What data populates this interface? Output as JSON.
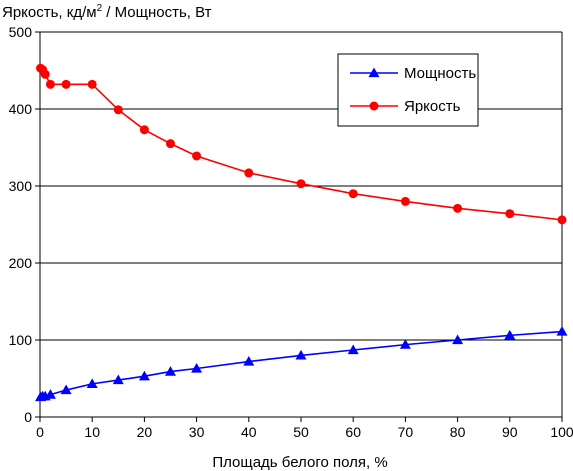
{
  "chart_data": {
    "type": "line",
    "title": "",
    "ylabel_main": "Яркость, кд/м",
    "ylabel_sup": "2",
    "ylabel_tail": " / Мощность, Вт",
    "xlabel": "Площадь белого поля, %",
    "xlim": [
      0,
      100
    ],
    "ylim": [
      0,
      500
    ],
    "xticks": [
      0,
      10,
      20,
      30,
      40,
      50,
      60,
      70,
      80,
      90,
      100
    ],
    "yticks": [
      0,
      100,
      200,
      300,
      400,
      500
    ],
    "grid": "horizontal",
    "legend_position": "top-right",
    "series": [
      {
        "name": "Мощность",
        "color": "#0000ff",
        "marker": "triangle",
        "x": [
          0.1,
          0.5,
          1,
          2,
          5,
          10,
          15,
          20,
          25,
          30,
          40,
          50,
          60,
          70,
          80,
          90,
          100
        ],
        "y": [
          26,
          27,
          27,
          29,
          35,
          43,
          48,
          53,
          59,
          63,
          72,
          80,
          87,
          94,
          100,
          106,
          111
        ]
      },
      {
        "name": "Яркость",
        "color": "#ff0000",
        "marker": "circle",
        "x": [
          0.1,
          0.5,
          1,
          2,
          5,
          10,
          15,
          20,
          25,
          30,
          40,
          50,
          60,
          70,
          80,
          90,
          100
        ],
        "y": [
          453,
          451,
          445,
          432,
          432,
          432,
          399,
          373,
          355,
          339,
          317,
          303,
          290,
          280,
          271,
          264,
          256
        ]
      }
    ]
  }
}
